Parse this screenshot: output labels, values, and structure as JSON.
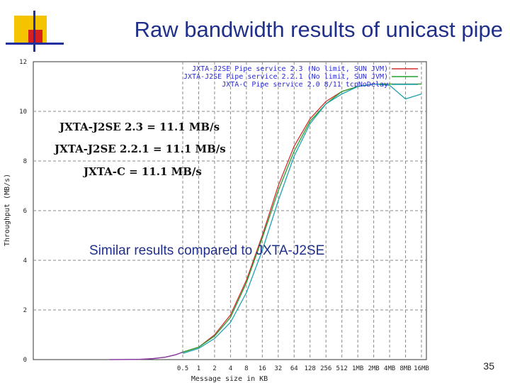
{
  "slide": {
    "title": "Raw bandwidth results of unicast pipe",
    "page_number": "35",
    "colors": {
      "title": "#1f2f8a",
      "accent_yellow": "#f5c400",
      "accent_red": "#d62020",
      "accent_blue": "#2030a0"
    }
  },
  "chart_data": {
    "type": "line",
    "title": "",
    "xlabel": "Message size in KB",
    "ylabel": "Throughput (MB/s)",
    "x_scale": "log2",
    "categories": [
      "0.5",
      "1",
      "2",
      "4",
      "8",
      "16",
      "32",
      "64",
      "128",
      "256",
      "512",
      "1MB",
      "2MB",
      "4MB",
      "8MB",
      "16MB"
    ],
    "x": [
      0.5,
      1,
      2,
      4,
      8,
      16,
      32,
      64,
      128,
      256,
      512,
      1024,
      2048,
      4096,
      8192,
      16384
    ],
    "yticks": [
      0,
      2,
      4,
      6,
      8,
      10,
      12
    ],
    "ylim": [
      0,
      12
    ],
    "grid": true,
    "legend_position": "top-right",
    "series": [
      {
        "name": "JXTA-J2SE Pipe service 2.3 (No limit, SUN JVM)",
        "color": "#d03030",
        "values": [
          0.3,
          0.5,
          1.0,
          1.8,
          3.2,
          5.0,
          7.0,
          8.6,
          9.7,
          10.4,
          10.8,
          11.0,
          11.1,
          11.1,
          11.1,
          11.1
        ]
      },
      {
        "name": "JXTA-J2SE Pipe service 2.2.1 (No limit, SUN JVM)",
        "color": "#20a030",
        "values": [
          0.3,
          0.5,
          0.95,
          1.7,
          3.1,
          4.9,
          6.8,
          8.4,
          9.6,
          10.3,
          10.8,
          11.0,
          11.1,
          11.1,
          11.1,
          11.1
        ]
      },
      {
        "name": "JXTA-C Pipe service 2.0 8/11 tcpNoDelay",
        "color": "#20a0b0",
        "values": [
          0.25,
          0.45,
          0.85,
          1.5,
          2.7,
          4.4,
          6.4,
          8.2,
          9.5,
          10.3,
          10.7,
          11.0,
          11.1,
          11.05,
          10.5,
          10.7
        ]
      }
    ],
    "low_end_curve": {
      "x_kb": [
        0.01,
        0.05,
        0.1,
        0.2,
        0.35,
        0.5
      ],
      "values": [
        0.0,
        0.01,
        0.04,
        0.1,
        0.2,
        0.3
      ]
    },
    "annotations": [
      "JXTA-J2SE 2.3 = 11.1 MB/s",
      "JXTA-J2SE 2.2.1 = 11.1 MB/s",
      "JXTA-C = 11.1 MB/s",
      "Similar results compared to JXTA-J2SE"
    ]
  }
}
